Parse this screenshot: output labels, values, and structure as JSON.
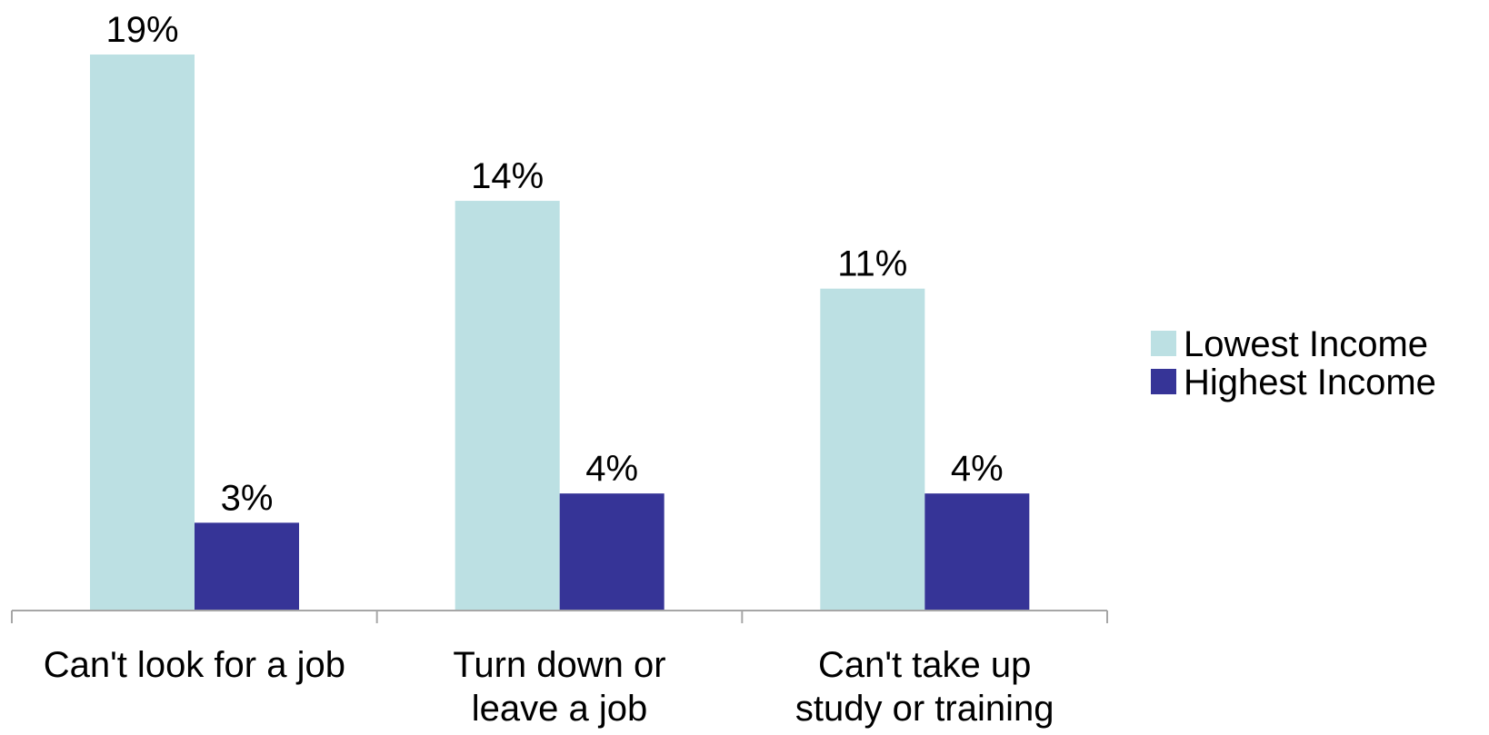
{
  "chart_data": {
    "type": "bar",
    "categories": [
      [
        "Can't look for a job"
      ],
      [
        "Turn down or",
        "leave a job"
      ],
      [
        "Can't take up",
        "study or training"
      ]
    ],
    "series": [
      {
        "name": "Lowest Income",
        "values": [
          19,
          14,
          11
        ],
        "labels": [
          "19%",
          "14%",
          "11%"
        ],
        "color": "#bce0e3"
      },
      {
        "name": "Highest Income",
        "values": [
          3,
          4,
          4
        ],
        "labels": [
          "3%",
          "4%",
          "4%"
        ],
        "color": "#363497"
      }
    ],
    "ylim": [
      0,
      19
    ],
    "grid": false,
    "legend": "right",
    "axis_color": "#a6a6a6"
  }
}
